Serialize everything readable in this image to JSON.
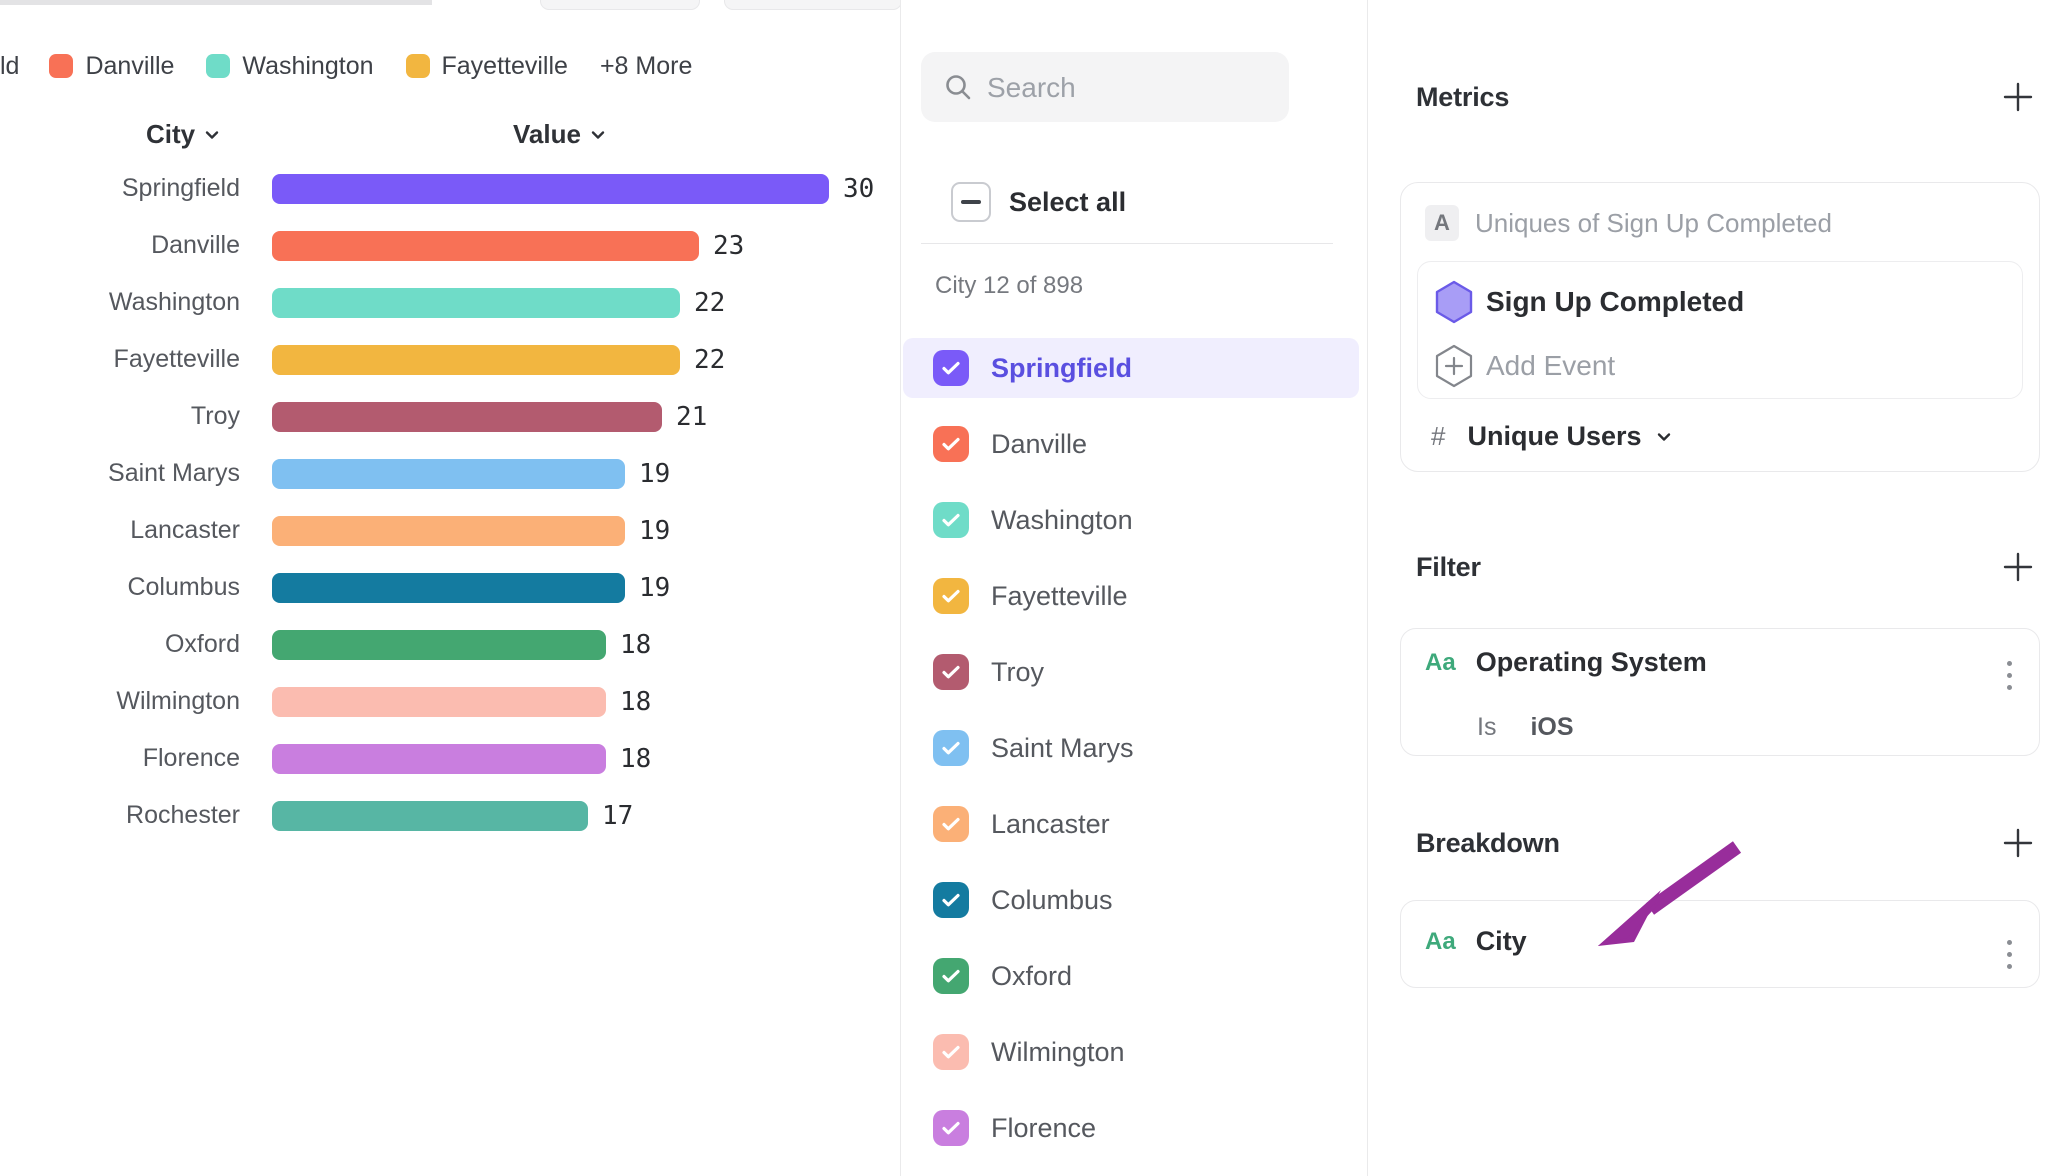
{
  "colors": {
    "accent": "#7a5af8",
    "arrow": "#982d9b",
    "type_badge_green": "#3ea97b",
    "selected_row_bg": "#f0eefe",
    "selected_text": "#5a4fe0"
  },
  "legend": {
    "truncated_item": "ld",
    "items": [
      {
        "label": "Danville",
        "color": "#f87156"
      },
      {
        "label": "Washington",
        "color": "#6fdcc8"
      },
      {
        "label": "Fayetteville",
        "color": "#f2b640"
      }
    ],
    "more_label": "+8 More"
  },
  "chart_header": {
    "city_label": "City",
    "value_label": "Value"
  },
  "chart_data": {
    "type": "bar",
    "orientation": "horizontal",
    "title": "",
    "xlabel": "Value",
    "ylabel": "City",
    "xlim": [
      0,
      30
    ],
    "grid": false,
    "legend_position": "top",
    "categories": [
      "Springfield",
      "Danville",
      "Washington",
      "Fayetteville",
      "Troy",
      "Saint Marys",
      "Lancaster",
      "Columbus",
      "Oxford",
      "Wilmington",
      "Florence",
      "Rochester"
    ],
    "values": [
      30,
      23,
      22,
      22,
      21,
      19,
      19,
      19,
      18,
      18,
      18,
      17
    ],
    "colors": [
      "#7a5af8",
      "#f87156",
      "#6fdcc8",
      "#f2b640",
      "#b35b6f",
      "#7fc0f1",
      "#fbb077",
      "#147ba0",
      "#44a771",
      "#fbbcb0",
      "#c97edf",
      "#57b6a4"
    ]
  },
  "city_panel": {
    "search_placeholder": "Search",
    "select_all_label": "Select all",
    "count_label": "City 12 of 898",
    "items": [
      {
        "name": "Springfield",
        "color": "#7a5af8",
        "checked": true,
        "selected": true
      },
      {
        "name": "Danville",
        "color": "#f87156",
        "checked": true,
        "selected": false
      },
      {
        "name": "Washington",
        "color": "#6fdcc8",
        "checked": true,
        "selected": false
      },
      {
        "name": "Fayetteville",
        "color": "#f2b640",
        "checked": true,
        "selected": false
      },
      {
        "name": "Troy",
        "color": "#b35b6f",
        "checked": true,
        "selected": false
      },
      {
        "name": "Saint Marys",
        "color": "#7fc0f1",
        "checked": true,
        "selected": false
      },
      {
        "name": "Lancaster",
        "color": "#fbb077",
        "checked": true,
        "selected": false
      },
      {
        "name": "Columbus",
        "color": "#147ba0",
        "checked": true,
        "selected": false
      },
      {
        "name": "Oxford",
        "color": "#44a771",
        "checked": true,
        "selected": false
      },
      {
        "name": "Wilmington",
        "color": "#fbbcb0",
        "checked": true,
        "selected": false
      },
      {
        "name": "Florence",
        "color": "#c97edf",
        "checked": true,
        "selected": false
      }
    ]
  },
  "inspector": {
    "metrics": {
      "title": "Metrics",
      "formula_badge": "A",
      "formula_text": "Uniques of Sign Up Completed",
      "event_name": "Sign Up Completed",
      "add_event_label": "Add Event",
      "measure_prefix": "#",
      "measure_label": "Unique Users"
    },
    "filter": {
      "title": "Filter",
      "type_badge": "Aa",
      "property": "Operating System",
      "operator": "Is",
      "value": "iOS"
    },
    "breakdown": {
      "title": "Breakdown",
      "type_badge": "Aa",
      "property": "City"
    }
  }
}
